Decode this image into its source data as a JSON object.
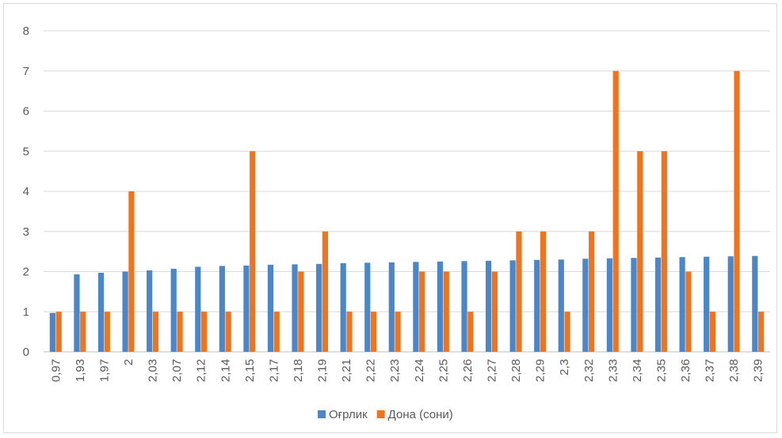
{
  "chart_data": {
    "type": "bar",
    "categories": [
      "0,97",
      "1,93",
      "1,97",
      "2",
      "2,03",
      "2,07",
      "2,12",
      "2,14",
      "2,15",
      "2,17",
      "2,18",
      "2,19",
      "2,21",
      "2,22",
      "2,23",
      "2,24",
      "2,25",
      "2,26",
      "2,27",
      "2,28",
      "2,29",
      "2,3",
      "2,32",
      "2,33",
      "2,34",
      "2,35",
      "2,36",
      "2,37",
      "2,38",
      "2,39"
    ],
    "series": [
      {
        "name": "Оғрлик",
        "color": "#4a86c8",
        "values": [
          0.97,
          1.93,
          1.97,
          2,
          2.03,
          2.07,
          2.12,
          2.14,
          2.15,
          2.17,
          2.18,
          2.19,
          2.21,
          2.22,
          2.23,
          2.24,
          2.25,
          2.26,
          2.27,
          2.28,
          2.29,
          2.3,
          2.32,
          2.33,
          2.34,
          2.35,
          2.36,
          2.37,
          2.38,
          2.39
        ]
      },
      {
        "name": "Дона (сони)",
        "color": "#f0741e",
        "values": [
          1,
          1,
          1,
          4,
          1,
          1,
          1,
          1,
          5,
          1,
          2,
          3,
          1,
          1,
          1,
          2,
          2,
          1,
          2,
          3,
          3,
          1,
          3,
          7,
          5,
          5,
          2,
          1,
          7,
          1
        ]
      }
    ],
    "yticks": [
      "0",
      "1",
      "2",
      "3",
      "4",
      "5",
      "6",
      "7",
      "8"
    ],
    "ylim": [
      0,
      8
    ],
    "grid": true,
    "legend": "bottom",
    "title": "",
    "xlabel": "",
    "ylabel": ""
  }
}
